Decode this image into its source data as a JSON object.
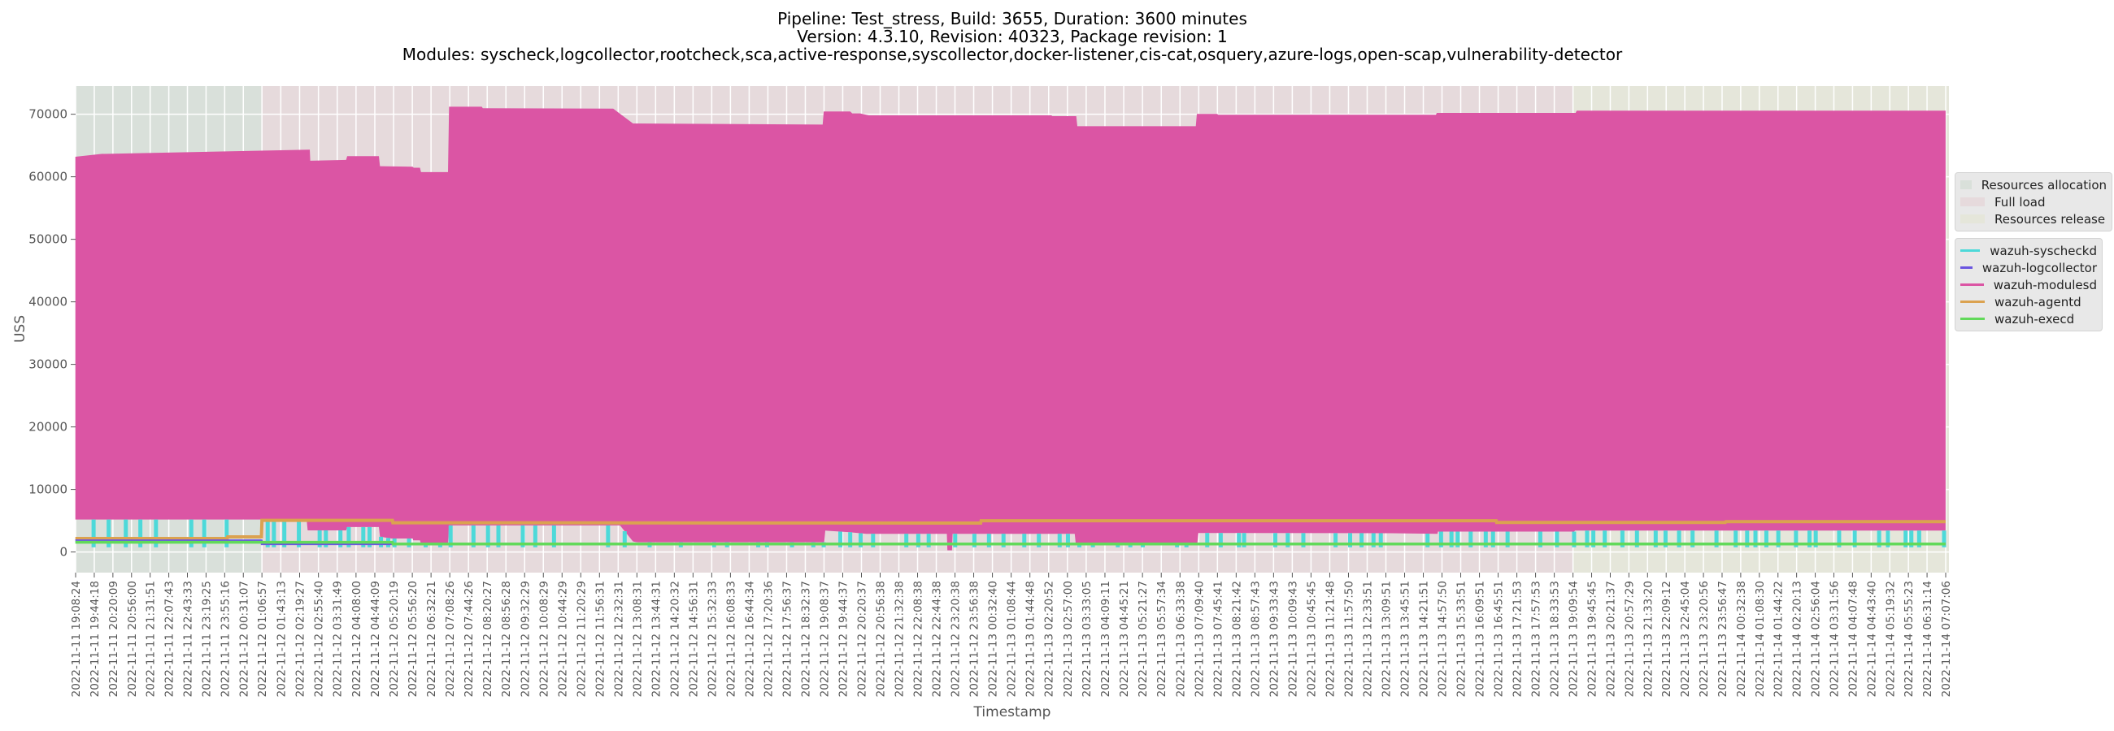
{
  "chart_data": {
    "type": "line",
    "title_lines": [
      "Pipeline: Test_stress, Build: 3655, Duration: 3600 minutes",
      "Version: 4.3.10, Revision: 40323, Package revision: 1",
      "Modules: syscheck,logcollector,rootcheck,sca,active-response,syscollector,docker-listener,cis-cat,osquery,azure-logs,open-scap,vulnerability-detector"
    ],
    "xlabel": "Timestamp",
    "ylabel": "USS",
    "ylim": [
      -3300,
      74500
    ],
    "yticks": [
      0,
      10000,
      20000,
      30000,
      40000,
      50000,
      60000,
      70000
    ],
    "grid": true,
    "legend_placement": "right-outside",
    "xticks": [
      "2022-11-11 19:08:24",
      "2022-11-11 19:44:18",
      "2022-11-11 20:20:09",
      "2022-11-11 20:56:00",
      "2022-11-11 21:31:51",
      "2022-11-11 22:07:43",
      "2022-11-11 22:43:33",
      "2022-11-11 23:19:25",
      "2022-11-11 23:55:16",
      "2022-11-12 00:31:07",
      "2022-11-12 01:06:57",
      "2022-11-12 01:43:13",
      "2022-11-12 02:19:27",
      "2022-11-12 02:55:40",
      "2022-11-12 03:31:49",
      "2022-11-12 04:08:00",
      "2022-11-12 04:44:09",
      "2022-11-12 05:20:19",
      "2022-11-12 05:56:20",
      "2022-11-12 06:32:21",
      "2022-11-12 07:08:26",
      "2022-11-12 07:44:26",
      "2022-11-12 08:20:27",
      "2022-11-12 08:56:28",
      "2022-11-12 09:32:29",
      "2022-11-12 10:08:29",
      "2022-11-12 10:44:29",
      "2022-11-12 11:20:29",
      "2022-11-12 11:56:31",
      "2022-11-12 12:32:31",
      "2022-11-12 13:08:31",
      "2022-11-12 13:44:31",
      "2022-11-12 14:20:32",
      "2022-11-12 14:56:31",
      "2022-11-12 15:32:33",
      "2022-11-12 16:08:33",
      "2022-11-12 16:44:34",
      "2022-11-12 17:20:36",
      "2022-11-12 17:56:37",
      "2022-11-12 18:32:37",
      "2022-11-12 19:08:37",
      "2022-11-12 19:44:37",
      "2022-11-12 20:20:37",
      "2022-11-12 20:56:38",
      "2022-11-12 21:32:38",
      "2022-11-12 22:08:38",
      "2022-11-12 22:44:38",
      "2022-11-12 23:20:38",
      "2022-11-12 23:56:38",
      "2022-11-13 00:32:40",
      "2022-11-13 01:08:44",
      "2022-11-13 01:44:48",
      "2022-11-13 02:20:52",
      "2022-11-13 02:57:00",
      "2022-11-13 03:33:05",
      "2022-11-13 04:09:11",
      "2022-11-13 04:45:21",
      "2022-11-13 05:21:27",
      "2022-11-13 05:57:34",
      "2022-11-13 06:33:38",
      "2022-11-13 07:09:40",
      "2022-11-13 07:45:41",
      "2022-11-13 08:21:42",
      "2022-11-13 08:57:43",
      "2022-11-13 09:33:43",
      "2022-11-13 10:09:43",
      "2022-11-13 10:45:45",
      "2022-11-13 11:21:48",
      "2022-11-13 11:57:50",
      "2022-11-13 12:33:51",
      "2022-11-13 13:09:51",
      "2022-11-13 13:45:51",
      "2022-11-13 14:21:51",
      "2022-11-13 14:57:50",
      "2022-11-13 15:33:51",
      "2022-11-13 16:09:51",
      "2022-11-13 16:45:51",
      "2022-11-13 17:21:53",
      "2022-11-13 17:57:53",
      "2022-11-13 18:33:53",
      "2022-11-13 19:09:54",
      "2022-11-13 19:45:45",
      "2022-11-13 20:21:37",
      "2022-11-13 20:57:29",
      "2022-11-13 21:33:20",
      "2022-11-13 22:09:12",
      "2022-11-13 22:45:04",
      "2022-11-13 23:20:56",
      "2022-11-13 23:56:47",
      "2022-11-14 00:32:38",
      "2022-11-14 01:08:30",
      "2022-11-14 01:44:22",
      "2022-11-14 02:20:13",
      "2022-11-14 02:56:04",
      "2022-11-14 03:31:56",
      "2022-11-14 04:07:48",
      "2022-11-14 04:43:40",
      "2022-11-14 05:19:32",
      "2022-11-14 05:55:23",
      "2022-11-14 06:31:14",
      "2022-11-14 07:07:06"
    ],
    "phases": [
      {
        "name": "Resources allocation",
        "start": "2022-11-11 19:08:24",
        "end": "2022-11-12 01:06:57",
        "color": "#d9e0da"
      },
      {
        "name": "Full load",
        "start": "2022-11-12 01:06:57",
        "end": "2022-11-13 19:09:54",
        "color": "#e6dadc"
      },
      {
        "name": "Resources release",
        "start": "2022-11-13 19:09:54",
        "end": "2022-11-14 07:07:06",
        "color": "#e5e6da"
      }
    ],
    "series": [
      {
        "name": "wazuh-syscheckd",
        "color": "#4dd9d9",
        "dip_value": 750,
        "dips": [
          "2022-11-11 19:43",
          "2022-11-11 20:12",
          "2022-11-11 20:45",
          "2022-11-11 21:13",
          "2022-11-11 21:43",
          "2022-11-11 22:51",
          "2022-11-11 23:16",
          "2022-11-11 23:59",
          "2022-11-12 01:18",
          "2022-11-12 01:30",
          "2022-11-12 01:50",
          "2022-11-12 02:18",
          "2022-11-12 02:58",
          "2022-11-12 03:10",
          "2022-11-12 03:38",
          "2022-11-12 03:54",
          "2022-11-12 04:22",
          "2022-11-12 04:34",
          "2022-11-12 04:56",
          "2022-11-12 05:10",
          "2022-11-12 05:22",
          "2022-11-12 05:50",
          "2022-11-12 06:22",
          "2022-11-12 06:50",
          "2022-11-12 07:10",
          "2022-11-12 07:54",
          "2022-11-12 08:22",
          "2022-11-12 08:42",
          "2022-11-12 09:29",
          "2022-11-12 09:53",
          "2022-11-12 10:29",
          "2022-11-12 12:13",
          "2022-11-12 12:45",
          "2022-11-12 13:33",
          "2022-11-12 14:33",
          "2022-11-12 15:37",
          "2022-11-12 16:02",
          "2022-11-12 17:02",
          "2022-11-12 17:19",
          "2022-11-12 18:07",
          "2022-11-12 18:48",
          "2022-11-12 19:08",
          "2022-11-12 19:40",
          "2022-11-12 19:59",
          "2022-11-12 20:19",
          "2022-11-12 20:43",
          "2022-11-12 21:47",
          "2022-11-12 22:10",
          "2022-11-12 22:30",
          "2022-11-12 23:21",
          "2022-11-12 23:58",
          "2022-11-13 00:26",
          "2022-11-13 00:54",
          "2022-11-13 01:34",
          "2022-11-13 02:02",
          "2022-11-13 02:42",
          "2022-11-13 02:58",
          "2022-11-13 03:20",
          "2022-11-13 03:46",
          "2022-11-13 04:34",
          "2022-11-13 04:58",
          "2022-11-13 05:22",
          "2022-11-13 06:28",
          "2022-11-13 06:46",
          "2022-11-13 07:26",
          "2022-11-13 07:52",
          "2022-11-13 08:27",
          "2022-11-13 08:37",
          "2022-11-13 09:37",
          "2022-11-13 10:01",
          "2022-11-13 10:31",
          "2022-11-13 11:33",
          "2022-11-13 12:01",
          "2022-11-13 12:23",
          "2022-11-13 12:46",
          "2022-11-13 13:00",
          "2022-11-13 14:30",
          "2022-11-13 14:56",
          "2022-11-13 15:16",
          "2022-11-13 15:28",
          "2022-11-13 15:53",
          "2022-11-13 16:22",
          "2022-11-13 16:36",
          "2022-11-13 17:04",
          "2022-11-13 18:07",
          "2022-11-13 18:39",
          "2022-11-13 19:12",
          "2022-11-13 19:37",
          "2022-11-13 19:49",
          "2022-11-13 20:11",
          "2022-11-13 20:45",
          "2022-11-13 21:13",
          "2022-11-13 21:49",
          "2022-11-13 22:08",
          "2022-11-13 22:34",
          "2022-11-13 23:00",
          "2022-11-13 23:46",
          "2022-11-14 00:23",
          "2022-11-14 00:45",
          "2022-11-14 01:01",
          "2022-11-14 01:22",
          "2022-11-14 01:45",
          "2022-11-14 02:19",
          "2022-11-14 02:45",
          "2022-11-14 02:57",
          "2022-11-14 03:42",
          "2022-11-14 04:12",
          "2022-11-14 04:59",
          "2022-11-14 05:16",
          "2022-11-14 05:50",
          "2022-11-14 06:01",
          "2022-11-14 06:16",
          "2022-11-14 07:04"
        ]
      },
      {
        "name": "wazuh-logcollector",
        "color": "#6a55e0",
        "points": [
          [
            "2022-11-11 19:08",
            1820
          ],
          [
            "2022-11-12 01:06",
            1820
          ],
          [
            "2022-11-12 01:07",
            1300
          ],
          [
            "2022-11-14 07:07",
            1300
          ]
        ]
      },
      {
        "name": "wazuh-modulesd",
        "color": "#db55a4",
        "max_envelope": [
          [
            "2022-11-11 19:08",
            63200
          ],
          [
            "2022-11-11 19:58",
            63650
          ],
          [
            "2022-11-12 02:39",
            64330
          ],
          [
            "2022-11-12 02:40",
            62560
          ],
          [
            "2022-11-12 03:49",
            62690
          ],
          [
            "2022-11-12 03:51",
            63290
          ],
          [
            "2022-11-12 04:52",
            63290
          ],
          [
            "2022-11-12 04:54",
            61700
          ],
          [
            "2022-11-12 05:57",
            61600
          ],
          [
            "2022-11-12 05:59",
            61450
          ],
          [
            "2022-11-12 06:11",
            61450
          ],
          [
            "2022-11-12 06:13",
            60740
          ],
          [
            "2022-11-12 07:05",
            60740
          ],
          [
            "2022-11-12 07:07",
            71200
          ],
          [
            "2022-11-12 08:10",
            71200
          ],
          [
            "2022-11-12 08:12",
            70950
          ],
          [
            "2022-11-12 12:23",
            70900
          ],
          [
            "2022-11-12 13:01",
            68520
          ],
          [
            "2022-11-12 19:06",
            68350
          ],
          [
            "2022-11-12 19:08",
            70430
          ],
          [
            "2022-11-12 19:59",
            70430
          ],
          [
            "2022-11-12 20:03",
            70140
          ],
          [
            "2022-11-12 20:18",
            70140
          ],
          [
            "2022-11-12 20:35",
            69820
          ],
          [
            "2022-11-13 02:26",
            69820
          ],
          [
            "2022-11-13 02:28",
            69690
          ],
          [
            "2022-11-13 03:14",
            69690
          ],
          [
            "2022-11-13 03:16",
            68090
          ],
          [
            "2022-11-13 07:04",
            68090
          ],
          [
            "2022-11-13 07:06",
            70040
          ],
          [
            "2022-11-13 07:45",
            70040
          ],
          [
            "2022-11-13 07:47",
            69910
          ],
          [
            "2022-11-13 14:46",
            69910
          ],
          [
            "2022-11-13 14:48",
            70210
          ],
          [
            "2022-11-13 19:15",
            70210
          ],
          [
            "2022-11-13 19:17",
            70560
          ],
          [
            "2022-11-14 07:07",
            70560
          ]
        ],
        "min_envelope": [
          [
            "2022-11-11 19:08",
            5190
          ],
          [
            "2022-11-12 01:06",
            5190
          ],
          [
            "2022-11-12 01:07",
            5070
          ],
          [
            "2022-11-12 02:33",
            5070
          ],
          [
            "2022-11-12 02:35",
            3460
          ],
          [
            "2022-11-12 03:49",
            3460
          ],
          [
            "2022-11-12 03:51",
            3980
          ],
          [
            "2022-11-12 04:52",
            3980
          ],
          [
            "2022-11-12 04:54",
            2460
          ],
          [
            "2022-11-12 05:16",
            2160
          ],
          [
            "2022-11-12 05:57",
            2160
          ],
          [
            "2022-11-12 05:58",
            1870
          ],
          [
            "2022-11-12 06:11",
            1870
          ],
          [
            "2022-11-12 06:13",
            1300
          ],
          [
            "2022-11-12 07:05",
            1300
          ],
          [
            "2022-11-12 07:07",
            4240
          ],
          [
            "2022-11-12 12:36",
            4240
          ],
          [
            "2022-11-12 13:01",
            1690
          ],
          [
            "2022-11-12 13:08",
            1560
          ],
          [
            "2022-11-12 19:09",
            1560
          ],
          [
            "2022-11-12 19:11",
            3420
          ],
          [
            "2022-11-12 19:58",
            3170
          ],
          [
            "2022-11-12 20:30",
            2910
          ],
          [
            "2022-11-12 23:05",
            2910
          ],
          [
            "2022-11-12 23:06",
            270
          ],
          [
            "2022-11-12 23:15",
            270
          ],
          [
            "2022-11-12 23:16",
            2910
          ],
          [
            "2022-11-13 03:11",
            2910
          ],
          [
            "2022-11-13 03:13",
            1430
          ],
          [
            "2022-11-13 07:07",
            1430
          ],
          [
            "2022-11-13 07:09",
            3040
          ],
          [
            "2022-11-13 13:20",
            3000
          ],
          [
            "2022-11-13 14:49",
            2910
          ],
          [
            "2022-11-13 14:50",
            3260
          ],
          [
            "2022-11-13 19:12",
            3260
          ],
          [
            "2022-11-13 19:14",
            3420
          ],
          [
            "2022-11-14 07:07",
            3420
          ]
        ]
      },
      {
        "name": "wazuh-agentd",
        "color": "#dba250",
        "points": [
          [
            "2022-11-11 19:08",
            2160
          ],
          [
            "2022-11-12 00:00",
            2160
          ],
          [
            "2022-11-12 00:01",
            2420
          ],
          [
            "2022-11-12 01:06",
            2420
          ],
          [
            "2022-11-12 01:07",
            5070
          ],
          [
            "2022-11-12 05:18",
            5070
          ],
          [
            "2022-11-12 05:19",
            4670
          ],
          [
            "2022-11-13 00:10",
            4620
          ],
          [
            "2022-11-13 00:11",
            5000
          ],
          [
            "2022-11-13 16:42",
            5000
          ],
          [
            "2022-11-13 16:43",
            4710
          ],
          [
            "2022-11-14 00:03",
            4710
          ],
          [
            "2022-11-14 00:04",
            4840
          ],
          [
            "2022-11-14 07:07",
            4840
          ]
        ]
      },
      {
        "name": "wazuh-execd",
        "color": "#62d95a",
        "points": [
          [
            "2022-11-11 19:08",
            1560
          ],
          [
            "2022-11-12 05:18",
            1560
          ],
          [
            "2022-11-12 05:19",
            1280
          ],
          [
            "2022-11-14 07:07",
            1280
          ]
        ]
      }
    ]
  }
}
